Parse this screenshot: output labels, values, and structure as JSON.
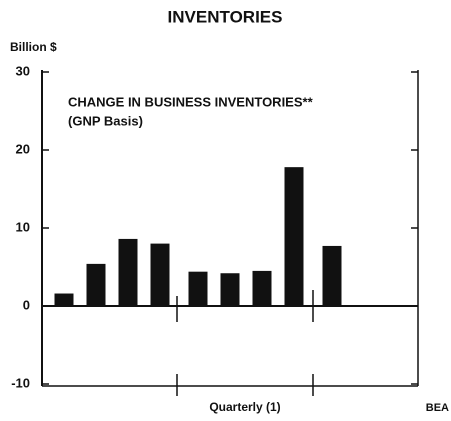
{
  "chart_data": {
    "type": "bar",
    "title": "INVENTORIES",
    "y_axis_label": "Billion $",
    "subtitle": "CHANGE IN BUSINESS INVENTORIES**",
    "note": "(GNP Basis)",
    "x_axis_label": "Quarterly (1)",
    "source": "BEA",
    "categories": [
      null,
      null,
      null,
      null,
      null,
      null,
      null,
      null,
      null
    ],
    "values": [
      1.6,
      5.4,
      8.6,
      8.0,
      4.4,
      4.2,
      4.5,
      17.8,
      7.7
    ],
    "color": "#111111",
    "ylim": [
      -10,
      30
    ],
    "yticks": [
      -10,
      0,
      10,
      20,
      30
    ],
    "grid": false
  }
}
